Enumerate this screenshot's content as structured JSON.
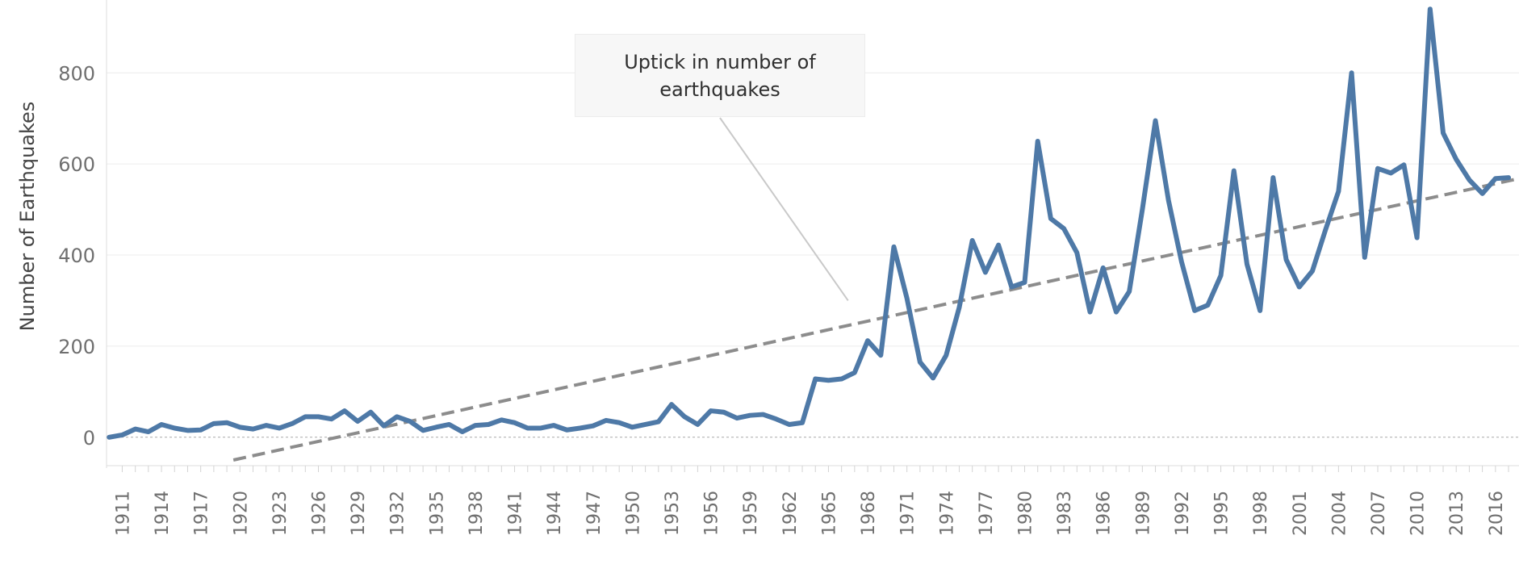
{
  "chart_data": {
    "type": "line",
    "title": "",
    "xlabel": "",
    "ylabel": "Number of Earthquakes",
    "ylim": [
      -50,
      960
    ],
    "xlim": [
      1909.8,
      2017.8
    ],
    "yticks": [
      0,
      200,
      400,
      600,
      800
    ],
    "xticks": [
      1911,
      1914,
      1917,
      1920,
      1923,
      1926,
      1929,
      1932,
      1935,
      1938,
      1941,
      1944,
      1947,
      1950,
      1953,
      1956,
      1959,
      1962,
      1965,
      1968,
      1971,
      1974,
      1977,
      1980,
      1983,
      1986,
      1989,
      1992,
      1995,
      1998,
      2001,
      2004,
      2007,
      2010,
      2013,
      2016
    ],
    "grid": true,
    "legend": "none",
    "series": [
      {
        "color": "#4e79a7",
        "x": [
          1910,
          1911,
          1912,
          1913,
          1914,
          1915,
          1916,
          1917,
          1918,
          1919,
          1920,
          1921,
          1922,
          1923,
          1924,
          1925,
          1926,
          1927,
          1928,
          1929,
          1930,
          1931,
          1932,
          1933,
          1934,
          1935,
          1936,
          1937,
          1938,
          1939,
          1940,
          1941,
          1942,
          1943,
          1944,
          1945,
          1946,
          1947,
          1948,
          1949,
          1950,
          1951,
          1952,
          1953,
          1954,
          1955,
          1956,
          1957,
          1958,
          1959,
          1960,
          1961,
          1962,
          1963,
          1964,
          1965,
          1966,
          1967,
          1968,
          1969,
          1970,
          1971,
          1972,
          1973,
          1974,
          1975,
          1976,
          1977,
          1978,
          1979,
          1980,
          1981,
          1982,
          1983,
          1984,
          1985,
          1986,
          1987,
          1988,
          1989,
          1990,
          1991,
          1992,
          1993,
          1994,
          1995,
          1996,
          1997,
          1998,
          1999,
          2000,
          2001,
          2002,
          2003,
          2004,
          2005,
          2006,
          2007,
          2008,
          2009,
          2010,
          2011,
          2012,
          2013,
          2014,
          2015,
          2016,
          2017
        ],
        "values": [
          0,
          5,
          18,
          12,
          28,
          20,
          15,
          16,
          30,
          32,
          22,
          18,
          26,
          20,
          30,
          45,
          45,
          40,
          58,
          35,
          55,
          25,
          45,
          35,
          15,
          22,
          28,
          12,
          26,
          28,
          38,
          32,
          20,
          20,
          26,
          16,
          20,
          25,
          37,
          32,
          22,
          28,
          34,
          72,
          45,
          28,
          58,
          55,
          42,
          48,
          50,
          40,
          28,
          32,
          128,
          125,
          128,
          142,
          212,
          180,
          418,
          305,
          165,
          130,
          180,
          285,
          432,
          362,
          422,
          330,
          340,
          650,
          480,
          458,
          405,
          275,
          372,
          275,
          320,
          500,
          695,
          520,
          385,
          278,
          290,
          355,
          585,
          380,
          278,
          570,
          390,
          330,
          365,
          455,
          540,
          800,
          395,
          590,
          580,
          598,
          438,
          940,
          668,
          610,
          565,
          535,
          568,
          570
        ]
      },
      {
        "color": "#8c8c8c",
        "kind": "trend",
        "x": [
          1919.5,
          2017.8
        ],
        "values": [
          -50,
          568
        ]
      }
    ],
    "annotation": {
      "text": "Uptick in number of earthquakes",
      "pointer_year": 1966.5,
      "pointer_value": 300
    }
  }
}
